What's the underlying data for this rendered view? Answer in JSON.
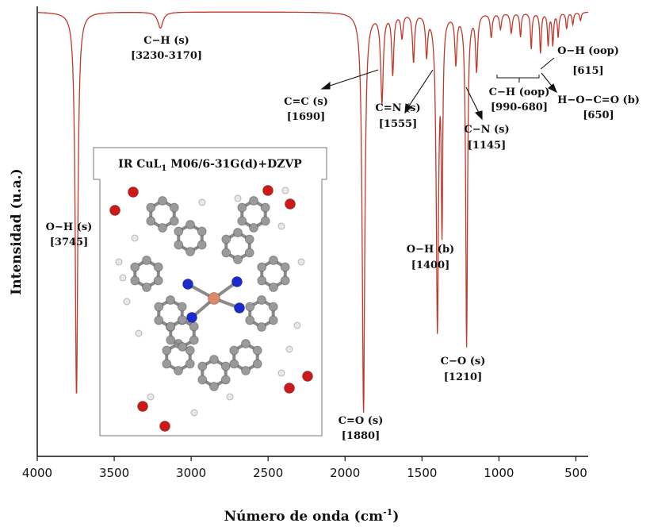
{
  "chart_data": {
    "type": "line",
    "title": "",
    "xlabel": "Número de onda (cm",
    "xlabel_sup": "-1",
    "xlabel_end": ")",
    "ylabel": "Intensidad (u.a.)",
    "xlim": [
      4000,
      420
    ],
    "x_ticks": [
      4000,
      3500,
      3000,
      2500,
      2000,
      1500,
      1000,
      500
    ],
    "y_ticks_shown": false,
    "grid": false,
    "line_color": "#c0392b",
    "peaks": [
      {
        "x": 3745,
        "depth": 0.96,
        "width": 10
      },
      {
        "x": 3200,
        "depth": 0.04,
        "width": 20
      },
      {
        "x": 1880,
        "depth": 1.0,
        "width": 10
      },
      {
        "x": 1760,
        "depth": 0.22,
        "width": 10
      },
      {
        "x": 1690,
        "depth": 0.15,
        "width": 8
      },
      {
        "x": 1630,
        "depth": 0.06,
        "width": 8
      },
      {
        "x": 1555,
        "depth": 0.12,
        "width": 8
      },
      {
        "x": 1470,
        "depth": 0.1,
        "width": 8
      },
      {
        "x": 1400,
        "depth": 0.78,
        "width": 9
      },
      {
        "x": 1370,
        "depth": 0.5,
        "width": 6
      },
      {
        "x": 1280,
        "depth": 0.12,
        "width": 8
      },
      {
        "x": 1210,
        "depth": 0.83,
        "width": 7
      },
      {
        "x": 1145,
        "depth": 0.14,
        "width": 8
      },
      {
        "x": 1050,
        "depth": 0.06,
        "width": 8
      },
      {
        "x": 990,
        "depth": 0.04,
        "width": 8
      },
      {
        "x": 920,
        "depth": 0.05,
        "width": 8
      },
      {
        "x": 860,
        "depth": 0.06,
        "width": 6
      },
      {
        "x": 790,
        "depth": 0.09,
        "width": 6
      },
      {
        "x": 730,
        "depth": 0.1,
        "width": 6
      },
      {
        "x": 680,
        "depth": 0.08,
        "width": 6
      },
      {
        "x": 650,
        "depth": 0.08,
        "width": 6
      },
      {
        "x": 615,
        "depth": 0.06,
        "width": 6
      },
      {
        "x": 560,
        "depth": 0.04,
        "width": 6
      },
      {
        "x": 520,
        "depth": 0.03,
        "width": 6
      },
      {
        "x": 470,
        "depth": 0.02,
        "width": 6
      }
    ],
    "annotations": [
      {
        "name": "C−H (s)",
        "range": "[3230-3170]"
      },
      {
        "name": "O−H (s)",
        "range": "[3745]"
      },
      {
        "name": "C=C (s)",
        "range": "[1690]"
      },
      {
        "name": "C=N (s)",
        "range": "[1555]"
      },
      {
        "name": "C−N (s)",
        "range": "[1145]"
      },
      {
        "name": "C−H (oop)",
        "range": "[990-680]"
      },
      {
        "name": "O−H (oop)",
        "range": "[615]"
      },
      {
        "name": "H−O−C=O (b)",
        "range": "[650]"
      },
      {
        "name": "O−H (b)",
        "range": "[1400]"
      },
      {
        "name": "C−O (s)",
        "range": "[1210]"
      },
      {
        "name": "C=O (s)",
        "range": "[1880]"
      }
    ],
    "inset": {
      "title_prefix": "IR CuL",
      "title_sub": "1",
      "title_suffix": " M06/6-31G(d)+DZVP"
    }
  }
}
